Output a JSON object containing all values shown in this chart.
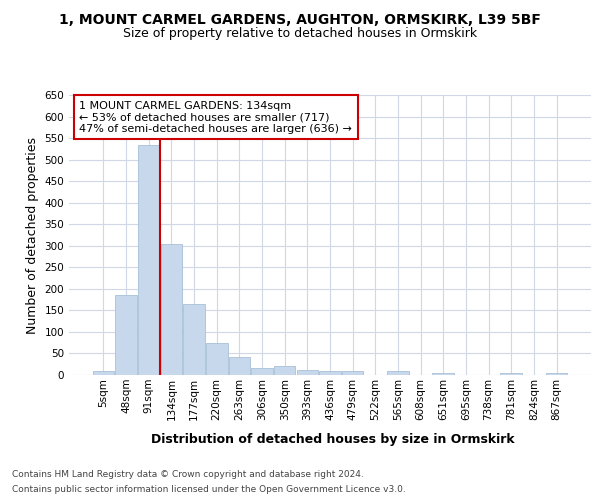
{
  "title1": "1, MOUNT CARMEL GARDENS, AUGHTON, ORMSKIRK, L39 5BF",
  "title2": "Size of property relative to detached houses in Ormskirk",
  "xlabel": "Distribution of detached houses by size in Ormskirk",
  "ylabel": "Number of detached properties",
  "bin_labels": [
    "5sqm",
    "48sqm",
    "91sqm",
    "134sqm",
    "177sqm",
    "220sqm",
    "263sqm",
    "306sqm",
    "350sqm",
    "393sqm",
    "436sqm",
    "479sqm",
    "522sqm",
    "565sqm",
    "608sqm",
    "651sqm",
    "695sqm",
    "738sqm",
    "781sqm",
    "824sqm",
    "867sqm"
  ],
  "bar_values": [
    10,
    185,
    535,
    305,
    165,
    75,
    42,
    17,
    20,
    12,
    10,
    9,
    0,
    10,
    0,
    5,
    0,
    0,
    5,
    0,
    5
  ],
  "bar_color": "#c8d8ec",
  "bar_edge_color": "#a8c0d8",
  "vline_color": "#cc0000",
  "annotation_text": "1 MOUNT CARMEL GARDENS: 134sqm\n← 53% of detached houses are smaller (717)\n47% of semi-detached houses are larger (636) →",
  "annotation_box_color": "#ffffff",
  "annotation_box_edge": "#cc0000",
  "ylim": [
    0,
    650
  ],
  "yticks": [
    0,
    50,
    100,
    150,
    200,
    250,
    300,
    350,
    400,
    450,
    500,
    550,
    600,
    650
  ],
  "footer1": "Contains HM Land Registry data © Crown copyright and database right 2024.",
  "footer2": "Contains public sector information licensed under the Open Government Licence v3.0.",
  "bg_color": "#ffffff",
  "plot_bg_color": "#ffffff",
  "grid_color": "#d0d8e8",
  "title1_fontsize": 10,
  "title2_fontsize": 9,
  "axis_label_fontsize": 9,
  "tick_fontsize": 7.5,
  "annotation_fontsize": 8,
  "footer_fontsize": 6.5
}
